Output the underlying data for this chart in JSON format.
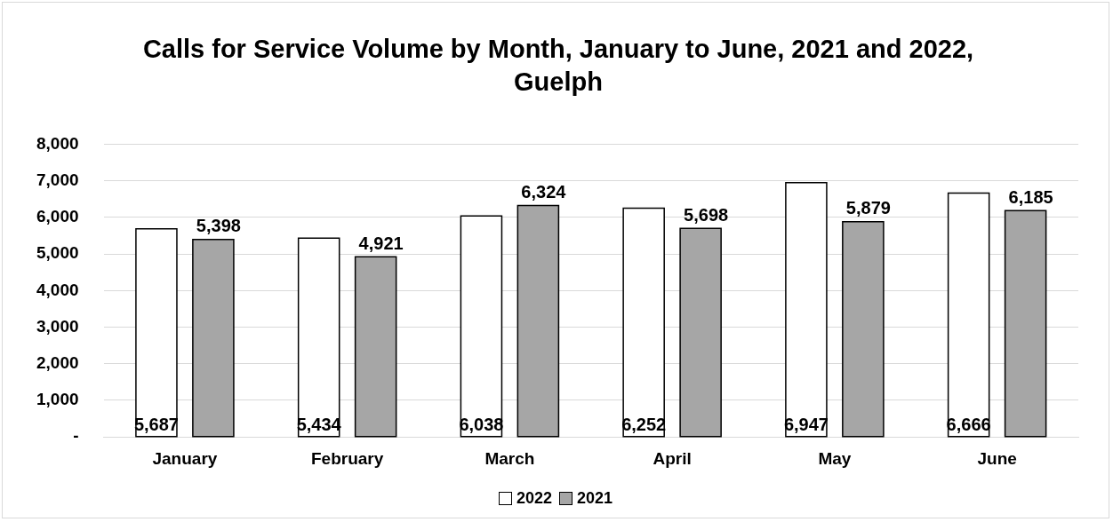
{
  "chart_data": {
    "type": "bar",
    "title": "Calls for Service Volume by Month, January to June, 2021 and 2022, Guelph",
    "categories": [
      "January",
      "February",
      "March",
      "April",
      "May",
      "June"
    ],
    "series": [
      {
        "name": "2022",
        "color": "#ffffff",
        "values": [
          5687,
          5434,
          6038,
          6252,
          6947,
          6666
        ],
        "value_labels": [
          "5,687",
          "5,434",
          "6,038",
          "6,252",
          "6,947",
          "6,666"
        ]
      },
      {
        "name": "2021",
        "color": "#a6a6a6",
        "values": [
          5398,
          4921,
          6324,
          5698,
          5879,
          6185
        ],
        "value_labels": [
          "5,398",
          "4,921",
          "6,324",
          "5,698",
          "5,879",
          "6,185"
        ]
      }
    ],
    "ylim": [
      0,
      8000
    ],
    "yticks": [
      {
        "value": 0,
        "label": "-"
      },
      {
        "value": 1000,
        "label": "1,000"
      },
      {
        "value": 2000,
        "label": "2,000"
      },
      {
        "value": 3000,
        "label": "3,000"
      },
      {
        "value": 4000,
        "label": "4,000"
      },
      {
        "value": 5000,
        "label": "5,000"
      },
      {
        "value": 6000,
        "label": "6,000"
      },
      {
        "value": 7000,
        "label": "7,000"
      },
      {
        "value": 8000,
        "label": "8,000"
      }
    ],
    "grid": "y",
    "legend": "bottom"
  }
}
